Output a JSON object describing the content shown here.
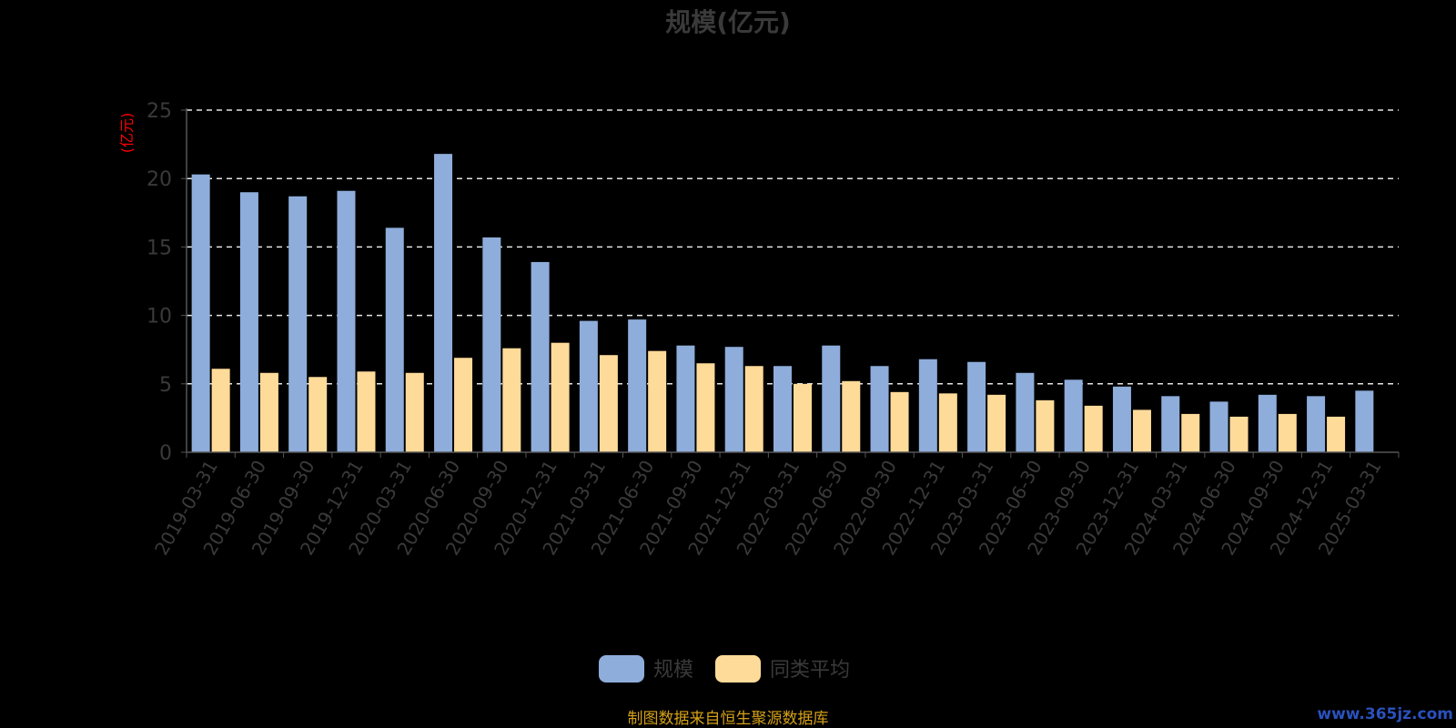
{
  "chart_data": {
    "type": "bar",
    "title": "规模(亿元)",
    "ylabel": "(亿元)",
    "ylim": [
      0,
      25
    ],
    "yticks": [
      0,
      5,
      10,
      15,
      20,
      25
    ],
    "grid": "horizontal-dashed",
    "legend_position": "bottom-center",
    "categories": [
      "2019-03-31",
      "2019-06-30",
      "2019-09-30",
      "2019-12-31",
      "2020-03-31",
      "2020-06-30",
      "2020-09-30",
      "2020-12-31",
      "2021-03-31",
      "2021-06-30",
      "2021-09-30",
      "2021-12-31",
      "2022-03-31",
      "2022-06-30",
      "2022-09-30",
      "2022-12-31",
      "2023-03-31",
      "2023-06-30",
      "2023-09-30",
      "2023-12-31",
      "2024-03-31",
      "2024-06-30",
      "2024-09-30",
      "2024-12-31",
      "2025-03-31"
    ],
    "series": [
      {
        "name": "规模",
        "color": "#8eaddb",
        "values": [
          20.3,
          19.0,
          18.7,
          19.1,
          16.4,
          21.8,
          15.7,
          13.9,
          9.6,
          9.7,
          7.8,
          7.7,
          6.3,
          7.8,
          6.3,
          6.8,
          6.6,
          5.8,
          5.3,
          4.8,
          4.1,
          3.7,
          4.2,
          4.1,
          4.5
        ]
      },
      {
        "name": "同类平均",
        "color": "#ffdb9a",
        "values": [
          6.1,
          5.8,
          5.5,
          5.9,
          5.8,
          6.9,
          7.6,
          8.0,
          7.1,
          7.4,
          6.5,
          6.3,
          5.0,
          5.2,
          4.4,
          4.3,
          4.2,
          3.8,
          3.4,
          3.1,
          2.8,
          2.6,
          2.8,
          2.6,
          null
        ]
      }
    ]
  },
  "source_note": "制图数据来自恒生聚源数据库",
  "watermark": "www.365jz.com"
}
